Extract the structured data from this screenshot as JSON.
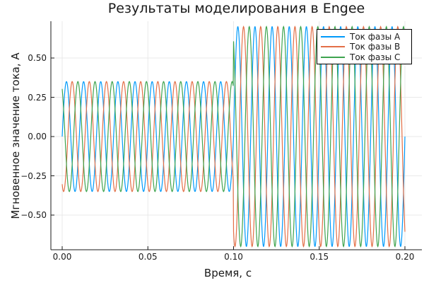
{
  "chart_data": {
    "type": "line",
    "title": "Результаты моделирования в Engee",
    "xlabel": "Время, с",
    "ylabel": "Мгновенное значение тока, А",
    "xticks": [
      0.0,
      0.05,
      0.1,
      0.15,
      0.2
    ],
    "xtick_labels": [
      "0.00",
      "0.05",
      "0.10",
      "0.15",
      "0.20"
    ],
    "yticks": [
      0.5,
      0.25,
      0.0,
      -0.25,
      -0.5
    ],
    "ytick_labels": [
      "0.50",
      "0.25",
      "0.00",
      "−0.25",
      "−0.50"
    ],
    "xlim": [
      -0.007,
      0.21
    ],
    "ylim": [
      -0.725,
      0.734
    ],
    "grid": true,
    "legend_position": "top-right",
    "t_start_s": 0.0,
    "t_end_s": 0.2,
    "sample_step_s": 0.0002,
    "frequency_hz": 100,
    "step_time_s": 0.1,
    "amplitude_before_A": 0.35,
    "amplitude_after_A": 0.7,
    "series": [
      {
        "name": "Ток фазы А",
        "color": "#009AFA",
        "phase_deg": 0
      },
      {
        "name": "Ток фазы В",
        "color": "#E36F47",
        "phase_deg": -120
      },
      {
        "name": "Ток фазы С",
        "color": "#3EA44E",
        "phase_deg": 120
      }
    ],
    "colors": {
      "grid": "#e9e9e9",
      "axis": "#1a1a1a",
      "background": "#ffffff"
    }
  }
}
